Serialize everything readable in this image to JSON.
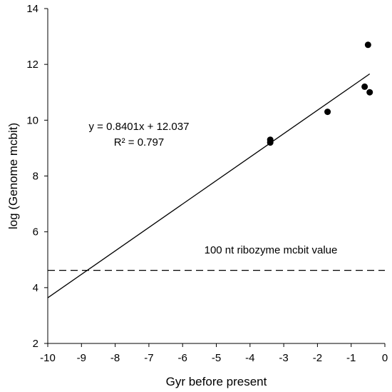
{
  "chart_data": {
    "type": "scatter",
    "xlabel": "Gyr before present",
    "ylabel": "log (Genome  mcbit)",
    "xlim": [
      -10,
      0
    ],
    "ylim": [
      2,
      14
    ],
    "x_ticks": [
      "-10",
      "-9",
      "-8",
      "-7",
      "-6",
      "-5",
      "-4",
      "-3",
      "-2",
      "-1",
      "0"
    ],
    "y_ticks": [
      "2",
      "4",
      "6",
      "8",
      "10",
      "12",
      "14"
    ],
    "grid": false,
    "points": [
      {
        "x": -3.4,
        "y": 9.3
      },
      {
        "x": -3.4,
        "y": 9.2
      },
      {
        "x": -1.7,
        "y": 10.3
      },
      {
        "x": -0.6,
        "y": 11.2
      },
      {
        "x": -0.5,
        "y": 12.7
      },
      {
        "x": -0.45,
        "y": 11.0
      }
    ],
    "trendline": {
      "slope": 0.8401,
      "intercept": 12.037,
      "x_range": [
        -10,
        -0.45
      ]
    },
    "equation_label": "y = 0.8401x + 12.037",
    "r2_label": "R² = 0.797",
    "reference_line": {
      "y": 4.62,
      "style": "dashed",
      "label": "100 nt ribozyme mcbit value"
    }
  }
}
